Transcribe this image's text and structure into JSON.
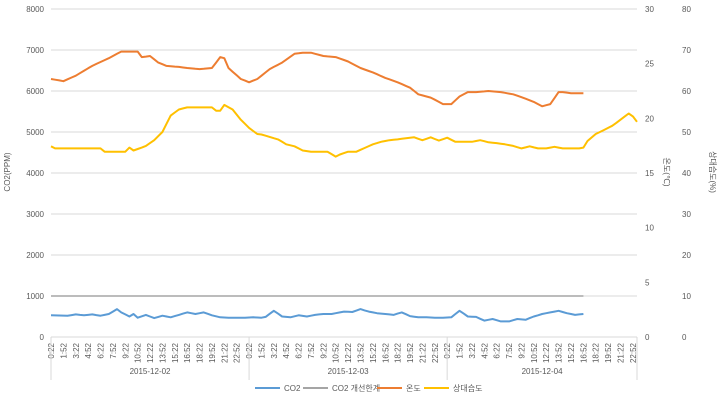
{
  "chart_data": {
    "type": "line",
    "x_tick_labels": [
      "0:22",
      "1:52",
      "3:22",
      "4:52",
      "6:22",
      "7:52",
      "9:22",
      "10:52",
      "12:22",
      "13:52",
      "15:22",
      "16:52",
      "18:22",
      "19:52",
      "21:22",
      "22:52"
    ],
    "days": [
      "2015-12-02",
      "2015-12-03",
      "2015-12-04"
    ],
    "y_left": {
      "title": "CO2(PPM)",
      "min": 0,
      "max": 8000,
      "ticks": [
        "0",
        "1000",
        "2000",
        "3000",
        "4000",
        "5000",
        "6000",
        "7000",
        "8000"
      ]
    },
    "y_right1": {
      "title": "온도(℃)",
      "min": 0,
      "max": 30,
      "ticks": [
        "0",
        "5",
        "10",
        "15",
        "20",
        "25",
        "30"
      ]
    },
    "y_right2": {
      "title": "상대습도(%)",
      "min": 0,
      "max": 80,
      "ticks": [
        "0",
        "10",
        "20",
        "30",
        "40",
        "50",
        "60",
        "70",
        "80"
      ]
    },
    "grid": true,
    "legend_position": "bottom",
    "series": [
      {
        "name": "CO2",
        "axis": "left",
        "color": "#5b9bd5",
        "keys": [
          [
            0,
            530
          ],
          [
            4,
            520
          ],
          [
            6,
            550
          ],
          [
            8,
            530
          ],
          [
            10,
            550
          ],
          [
            12,
            520
          ],
          [
            14,
            560
          ],
          [
            16,
            680
          ],
          [
            17,
            600
          ],
          [
            19,
            500
          ],
          [
            20,
            560
          ],
          [
            21,
            470
          ],
          [
            23,
            540
          ],
          [
            25,
            460
          ],
          [
            27,
            520
          ],
          [
            29,
            480
          ],
          [
            31,
            540
          ],
          [
            33,
            600
          ],
          [
            35,
            560
          ],
          [
            37,
            600
          ],
          [
            39,
            530
          ],
          [
            41,
            480
          ],
          [
            43,
            470
          ],
          [
            45,
            470
          ],
          [
            47,
            470
          ],
          [
            49,
            480
          ],
          [
            51,
            470
          ],
          [
            52,
            490
          ],
          [
            54,
            640
          ],
          [
            56,
            500
          ],
          [
            58,
            480
          ],
          [
            60,
            530
          ],
          [
            62,
            500
          ],
          [
            64,
            540
          ],
          [
            66,
            560
          ],
          [
            68,
            560
          ],
          [
            69,
            580
          ],
          [
            71,
            620
          ],
          [
            73,
            610
          ],
          [
            75,
            680
          ],
          [
            77,
            620
          ],
          [
            79,
            580
          ],
          [
            81,
            560
          ],
          [
            83,
            540
          ],
          [
            85,
            600
          ],
          [
            87,
            510
          ],
          [
            89,
            480
          ],
          [
            91,
            480
          ],
          [
            93,
            470
          ],
          [
            95,
            470
          ],
          [
            97,
            480
          ],
          [
            99,
            640
          ],
          [
            101,
            500
          ],
          [
            103,
            490
          ],
          [
            105,
            400
          ],
          [
            107,
            440
          ],
          [
            109,
            380
          ],
          [
            111,
            380
          ],
          [
            113,
            440
          ],
          [
            115,
            420
          ],
          [
            117,
            500
          ],
          [
            119,
            560
          ],
          [
            121,
            600
          ],
          [
            123,
            640
          ],
          [
            125,
            580
          ],
          [
            127,
            540
          ],
          [
            129,
            560
          ]
        ]
      },
      {
        "name": "CO2 개선한계",
        "axis": "left",
        "color": "#a5a5a5",
        "keys": [
          [
            0,
            1000
          ],
          [
            129,
            1000
          ]
        ]
      },
      {
        "name": "온도",
        "axis": "right1",
        "color": "#ed7d31",
        "keys": [
          [
            0,
            23.6
          ],
          [
            3,
            23.4
          ],
          [
            6,
            23.9
          ],
          [
            10,
            24.8
          ],
          [
            14,
            25.5
          ],
          [
            17,
            26.1
          ],
          [
            21,
            26.1
          ],
          [
            22,
            25.6
          ],
          [
            24,
            25.7
          ],
          [
            26,
            25.1
          ],
          [
            28,
            24.8
          ],
          [
            31,
            24.7
          ],
          [
            33,
            24.6
          ],
          [
            36,
            24.5
          ],
          [
            39,
            24.6
          ],
          [
            41,
            25.6
          ],
          [
            42,
            25.5
          ],
          [
            43,
            24.6
          ],
          [
            46,
            23.6
          ],
          [
            48,
            23.3
          ],
          [
            50,
            23.6
          ],
          [
            53,
            24.5
          ],
          [
            56,
            25.1
          ],
          [
            59,
            25.9
          ],
          [
            61,
            26.0
          ],
          [
            63,
            26.0
          ],
          [
            66,
            25.7
          ],
          [
            69,
            25.6
          ],
          [
            72,
            25.2
          ],
          [
            75,
            24.6
          ],
          [
            78,
            24.2
          ],
          [
            81,
            23.7
          ],
          [
            84,
            23.3
          ],
          [
            87,
            22.8
          ],
          [
            89,
            22.2
          ],
          [
            92,
            21.9
          ],
          [
            95,
            21.3
          ],
          [
            97,
            21.3
          ],
          [
            99,
            22.0
          ],
          [
            101,
            22.4
          ],
          [
            103,
            22.4
          ],
          [
            106,
            22.5
          ],
          [
            109,
            22.4
          ],
          [
            112,
            22.2
          ],
          [
            115,
            21.8
          ],
          [
            117,
            21.5
          ],
          [
            119,
            21.1
          ],
          [
            121,
            21.3
          ],
          [
            123,
            22.4
          ],
          [
            124,
            22.4
          ],
          [
            126,
            22.3
          ],
          [
            128,
            22.3
          ],
          [
            129,
            22.3
          ]
        ]
      },
      {
        "name": "상대습도",
        "axis": "right2",
        "color": "#ffc000",
        "keys": [
          [
            0,
            46.5
          ],
          [
            1,
            46
          ],
          [
            8,
            46
          ],
          [
            12,
            46
          ],
          [
            13,
            45.2
          ],
          [
            18,
            45.2
          ],
          [
            19,
            46.2
          ],
          [
            20,
            45.5
          ],
          [
            22,
            46.2
          ],
          [
            23,
            46.6
          ],
          [
            25,
            48
          ],
          [
            27,
            50
          ],
          [
            29,
            54
          ],
          [
            31,
            55.5
          ],
          [
            33,
            56
          ],
          [
            36,
            56
          ],
          [
            39,
            56
          ],
          [
            40,
            55.2
          ],
          [
            41,
            55.2
          ],
          [
            42,
            56.6
          ],
          [
            44,
            55.5
          ],
          [
            46,
            53
          ],
          [
            48,
            51
          ],
          [
            50,
            49.5
          ],
          [
            51,
            49.4
          ],
          [
            53,
            48.8
          ],
          [
            55,
            48.2
          ],
          [
            57,
            47
          ],
          [
            59,
            46.5
          ],
          [
            61,
            45.5
          ],
          [
            63,
            45.2
          ],
          [
            65,
            45.2
          ],
          [
            67,
            45.2
          ],
          [
            69,
            44
          ],
          [
            70,
            44.5
          ],
          [
            72,
            45.2
          ],
          [
            74,
            45.2
          ],
          [
            76,
            46.1
          ],
          [
            78,
            47
          ],
          [
            80,
            47.6
          ],
          [
            82,
            48
          ],
          [
            84,
            48.2
          ],
          [
            86,
            48.5
          ],
          [
            88,
            48.7
          ],
          [
            90,
            48
          ],
          [
            92,
            48.7
          ],
          [
            94,
            47.9
          ],
          [
            96,
            48.6
          ],
          [
            98,
            47.6
          ],
          [
            100,
            47.6
          ],
          [
            102,
            47.6
          ],
          [
            104,
            48
          ],
          [
            106,
            47.5
          ],
          [
            108,
            47.3
          ],
          [
            110,
            47
          ],
          [
            112,
            46.6
          ],
          [
            114,
            46
          ],
          [
            116,
            46.5
          ],
          [
            118,
            46
          ],
          [
            120,
            46
          ],
          [
            122,
            46.4
          ],
          [
            124,
            46
          ],
          [
            126,
            46
          ],
          [
            128,
            46
          ],
          [
            129,
            46.2
          ],
          [
            130,
            47.8
          ],
          [
            132,
            49.5
          ],
          [
            134,
            50.5
          ],
          [
            136,
            51.5
          ],
          [
            138,
            53
          ],
          [
            140,
            54.5
          ],
          [
            141,
            53.8
          ],
          [
            142,
            52.5
          ]
        ]
      }
    ]
  }
}
